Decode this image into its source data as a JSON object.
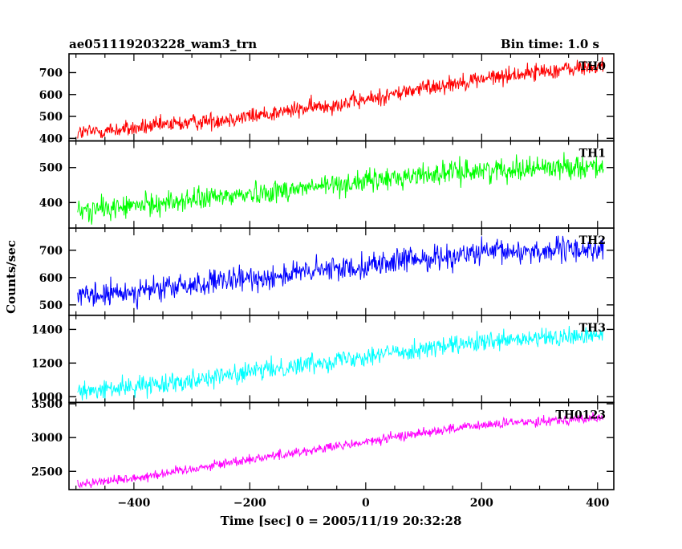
{
  "chart_data": {
    "type": "line",
    "title": "ae051119203228_wam3_trn",
    "subtitle": "Bin time: 1.0 s",
    "xlabel": "Time [sec] 0 = 2005/11/19 20:32:28",
    "ylabel": "Counts/sec",
    "xlim": [
      -512,
      428
    ],
    "x_ticks": [
      -400,
      -200,
      0,
      200,
      400
    ],
    "x_tick_labels": [
      "−400",
      "−200",
      "0",
      "200",
      "400"
    ],
    "x_data_range": [
      -497,
      410
    ],
    "bin_time": 1.0,
    "panels": [
      {
        "name": "TH0",
        "color": "#ff0000",
        "ylim": [
          388,
          786
        ],
        "y_ticks": [
          400,
          500,
          600,
          700
        ],
        "y_tick_labels": [
          "400",
          "500",
          "600",
          "700"
        ],
        "trend": [
          [
            -497,
            425
          ],
          [
            -400,
            445
          ],
          [
            -200,
            500
          ],
          [
            0,
            575
          ],
          [
            100,
            630
          ],
          [
            200,
            672
          ],
          [
            300,
            705
          ],
          [
            410,
            728
          ]
        ],
        "noise": 24
      },
      {
        "name": "TH1",
        "color": "#00ff00",
        "ylim": [
          327,
          576
        ],
        "y_ticks": [
          400,
          500
        ],
        "y_tick_labels": [
          "400",
          "500"
        ],
        "trend": [
          [
            -497,
            375
          ],
          [
            -400,
            390
          ],
          [
            -200,
            425
          ],
          [
            0,
            460
          ],
          [
            100,
            480
          ],
          [
            200,
            492
          ],
          [
            300,
            500
          ],
          [
            410,
            505
          ]
        ],
        "noise": 20
      },
      {
        "name": "TH2",
        "color": "#0000ff",
        "ylim": [
          462,
          781
        ],
        "y_ticks": [
          500,
          600,
          700
        ],
        "y_tick_labels": [
          "500",
          "600",
          "700"
        ],
        "trend": [
          [
            -497,
            525
          ],
          [
            -400,
            548
          ],
          [
            -200,
            595
          ],
          [
            0,
            645
          ],
          [
            100,
            670
          ],
          [
            200,
            690
          ],
          [
            300,
            698
          ],
          [
            410,
            705
          ]
        ],
        "noise": 28
      },
      {
        "name": "TH3",
        "color": "#00ffff",
        "ylim": [
          966,
          1484
        ],
        "y_ticks": [
          1000,
          1200,
          1400
        ],
        "y_tick_labels": [
          "1000",
          "1200",
          "1400"
        ],
        "trend": [
          [
            -497,
            1025
          ],
          [
            -400,
            1060
          ],
          [
            -200,
            1145
          ],
          [
            0,
            1245
          ],
          [
            100,
            1285
          ],
          [
            200,
            1320
          ],
          [
            300,
            1345
          ],
          [
            410,
            1365
          ]
        ],
        "noise": 35
      },
      {
        "name": "TH0123",
        "color": "#ff00ff",
        "ylim": [
          2230,
          3520
        ],
        "y_ticks": [
          2500,
          3000,
          3500
        ],
        "y_tick_labels": [
          "2500",
          "3000",
          "3500"
        ],
        "trend": [
          [
            -497,
            2320
          ],
          [
            -400,
            2400
          ],
          [
            -200,
            2680
          ],
          [
            0,
            2930
          ],
          [
            100,
            3080
          ],
          [
            200,
            3180
          ],
          [
            300,
            3250
          ],
          [
            410,
            3290
          ]
        ],
        "noise": 45
      }
    ],
    "grid": false,
    "legend": "panel labels top-right"
  }
}
